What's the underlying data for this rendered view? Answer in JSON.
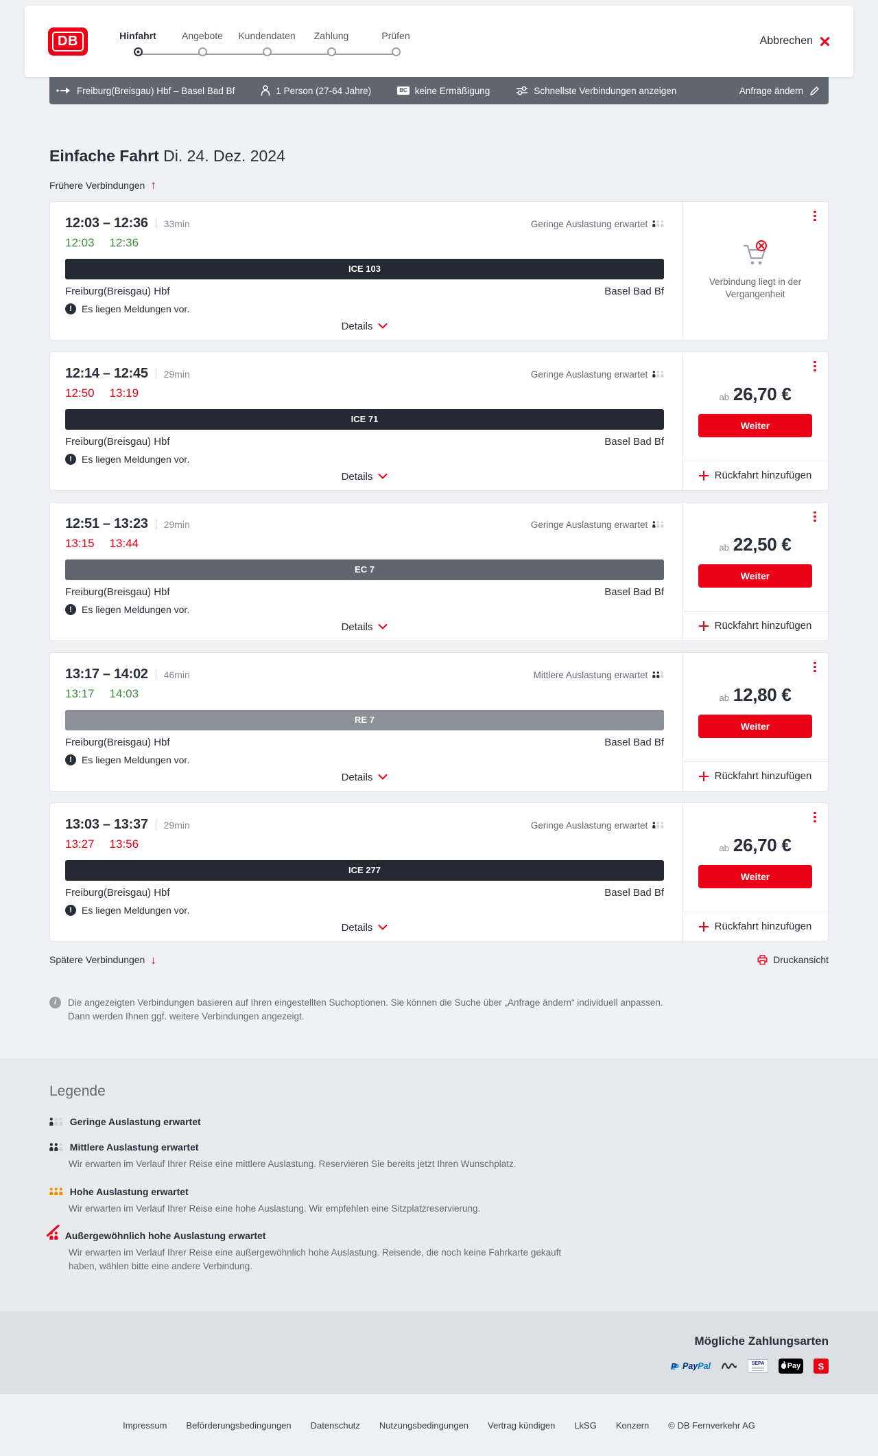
{
  "theme": {
    "db_red": "#ec0016",
    "dark_navy": "#282d37",
    "gray_text": "#646973",
    "on_time_green": "#3d8c40",
    "delayed_red": "#ec0016",
    "summary_bar_bg": "#5f666e",
    "train_bar_ice": "#242933",
    "train_bar_ec": "#5f666e",
    "train_bar_re": "#8c9199",
    "occupancy_orange": "#f28c00"
  },
  "header": {
    "logo": "DB",
    "steps": [
      {
        "label": "Hinfahrt",
        "active": true
      },
      {
        "label": "Angebote",
        "active": false
      },
      {
        "label": "Kundendaten",
        "active": false
      },
      {
        "label": "Zahlung",
        "active": false
      },
      {
        "label": "Prüfen",
        "active": false
      }
    ],
    "cancel_label": "Abbrechen"
  },
  "summary_bar": {
    "route": "Freiburg(Breisgau) Hbf – Basel Bad Bf",
    "passengers": "1 Person (27-64 Jahre)",
    "discount_badge": "BC",
    "discount": "keine Ermäßigung",
    "filter": "Schnellste Verbindungen anzeigen",
    "change_request": "Anfrage ändern"
  },
  "results": {
    "title": "Einfache Fahrt",
    "date": "Di. 24. Dez. 2024",
    "earlier_label": "Frühere Verbindungen",
    "later_label": "Spätere Verbindungen",
    "print_label": "Druckansicht",
    "details_label": "Details",
    "notice_label": "Es liegen Meldungen vor.",
    "ab_label": "ab",
    "weiter_label": "Weiter",
    "return_label": "Rückfahrt hinzufügen",
    "past_label": "Verbindung liegt in der Vergangenheit",
    "connections": [
      {
        "depart": "12:03",
        "arrive": "12:36",
        "duration": "33min",
        "actual_depart": "12:03",
        "actual_arrive": "12:36",
        "status": "on-time",
        "train": "ICE 103",
        "train_type": "ice",
        "from": "Freiburg(Breisgau) Hbf",
        "to": "Basel Bad Bf",
        "occupancy": "Geringe Auslastung erwartet",
        "occupancy_level": "low",
        "past": true,
        "price": null
      },
      {
        "depart": "12:14",
        "arrive": "12:45",
        "duration": "29min",
        "actual_depart": "12:50",
        "actual_arrive": "13:19",
        "status": "delayed",
        "train": "ICE 71",
        "train_type": "ice",
        "from": "Freiburg(Breisgau) Hbf",
        "to": "Basel Bad Bf",
        "occupancy": "Geringe Auslastung erwartet",
        "occupancy_level": "low",
        "past": false,
        "price": "26,70 €"
      },
      {
        "depart": "12:51",
        "arrive": "13:23",
        "duration": "29min",
        "actual_depart": "13:15",
        "actual_arrive": "13:44",
        "status": "delayed",
        "train": "EC 7",
        "train_type": "ec",
        "from": "Freiburg(Breisgau) Hbf",
        "to": "Basel Bad Bf",
        "occupancy": "Geringe Auslastung erwartet",
        "occupancy_level": "low",
        "past": false,
        "price": "22,50 €"
      },
      {
        "depart": "13:17",
        "arrive": "14:02",
        "duration": "46min",
        "actual_depart": "13:17",
        "actual_arrive": "14:03",
        "status": "on-time",
        "train": "RE 7",
        "train_type": "re",
        "from": "Freiburg(Breisgau) Hbf",
        "to": "Basel Bad Bf",
        "occupancy": "Mittlere Auslastung erwartet",
        "occupancy_level": "mid",
        "past": false,
        "price": "12,80 €"
      },
      {
        "depart": "13:03",
        "arrive": "13:37",
        "duration": "29min",
        "actual_depart": "13:27",
        "actual_arrive": "13:56",
        "status": "delayed",
        "train": "ICE 277",
        "train_type": "ice",
        "from": "Freiburg(Breisgau) Hbf",
        "to": "Basel Bad Bf",
        "occupancy": "Geringe Auslastung erwartet",
        "occupancy_level": "low",
        "past": false,
        "price": "26,70 €"
      }
    ],
    "info_text": "Die angezeigten Verbindungen basieren auf Ihren eingestellten Suchoptionen. Sie können die Suche über „Anfrage ändern“ individuell anpassen. Dann werden Ihnen ggf. weitere Verbindungen angezeigt."
  },
  "legend": {
    "title": "Legende",
    "items": [
      {
        "label": "Geringe Auslastung erwartet",
        "level": "low",
        "description": ""
      },
      {
        "label": "Mittlere Auslastung erwartet",
        "level": "mid",
        "description": "Wir erwarten im Verlauf Ihrer Reise eine mittlere Auslastung. Reservieren Sie bereits jetzt Ihren Wunschplatz."
      },
      {
        "label": "Hohe Auslastung erwartet",
        "level": "high",
        "description": "Wir erwarten im Verlauf Ihrer Reise eine hohe Auslastung. Wir empfehlen eine Sitzplatzreservierung."
      },
      {
        "label": "Außergewöhnlich hohe Auslastung erwartet",
        "level": "very-high",
        "description": "Wir erwarten im Verlauf Ihrer Reise eine außergewöhnlich hohe Auslastung. Reisende, die noch keine Fahrkarte gekauft haben, wählen bitte eine andere Verbindung."
      }
    ]
  },
  "payments": {
    "title": "Mögliche Zahlungsarten",
    "methods": [
      "PayPal",
      "Wero",
      "SEPA-Lastschrift",
      "Apple Pay",
      "Sparkasse"
    ],
    "icons": {
      "paypal_pay": "Pay",
      "paypal_pal": "Pal",
      "sepa": "SEPA",
      "apple": "Pay",
      "sparkasse": "S"
    }
  },
  "footer": {
    "links": [
      "Impressum",
      "Beförderungsbedingungen",
      "Datenschutz",
      "Nutzungsbedingungen",
      "Vertrag kündigen",
      "LkSG",
      "Konzern"
    ],
    "copyright": "© DB Fernverkehr AG"
  }
}
